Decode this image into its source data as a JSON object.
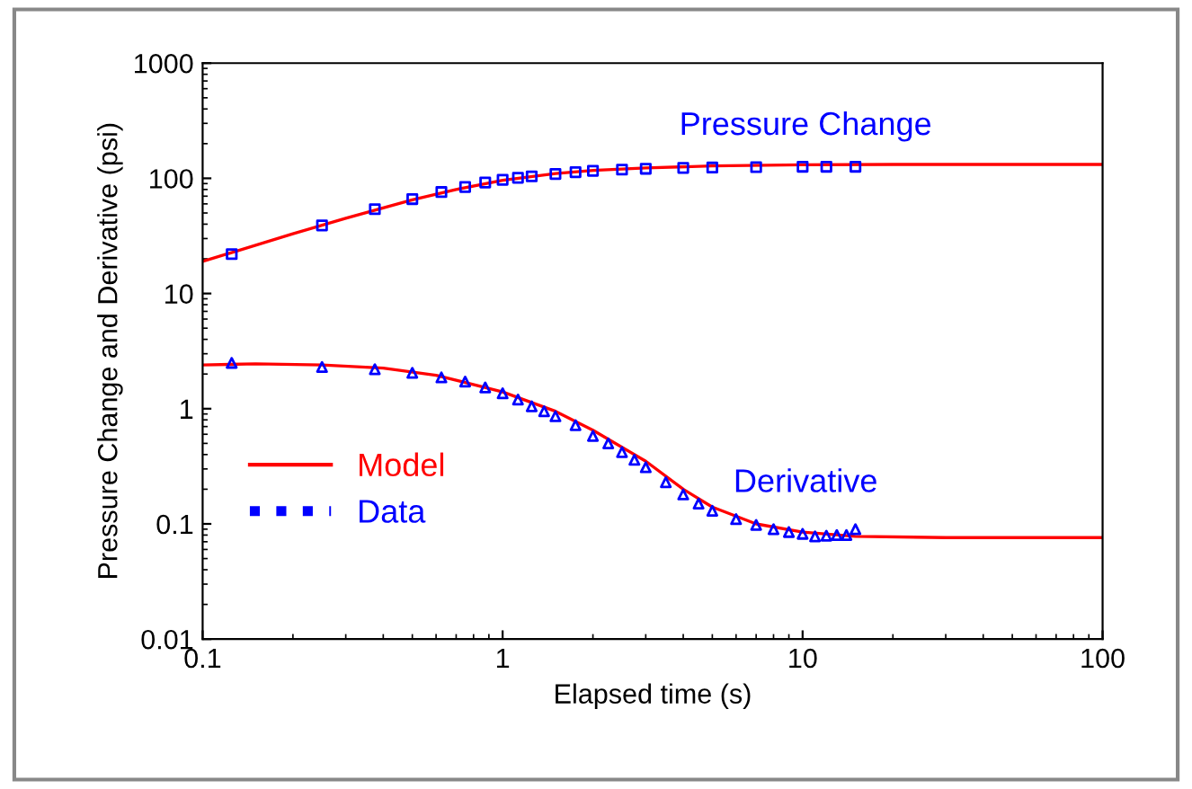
{
  "chart_data": {
    "type": "line",
    "xlabel": "Elapsed time (s)",
    "ylabel": "Pressure Change and Derivative (psi)",
    "log": "xy",
    "xlim": [
      0.1,
      100
    ],
    "ylim": [
      0.01,
      1000
    ],
    "xticks": [
      0.1,
      1,
      10,
      100
    ],
    "yticks": [
      0.01,
      0.1,
      1,
      10,
      100,
      1000
    ],
    "grid": false,
    "legend": "bottom left",
    "series": [
      {
        "name": "Model",
        "color": "#ff0000",
        "line_style": "solid",
        "marker": "none",
        "x": [
          0.1,
          0.2,
          0.3,
          0.5,
          0.7,
          1,
          1.5,
          2,
          3,
          5,
          10,
          20,
          100
        ],
        "values": [
          19,
          33,
          45,
          65,
          80,
          96,
          110,
          117,
          123,
          128,
          131,
          132,
          132
        ]
      },
      {
        "color": "#ff0000",
        "line_style": "solid",
        "marker": "none",
        "x": [
          0.1,
          0.15,
          0.25,
          0.4,
          0.6,
          1,
          1.5,
          2,
          3,
          4,
          5,
          7,
          10,
          15,
          30,
          100
        ],
        "values": [
          2.4,
          2.45,
          2.4,
          2.25,
          1.95,
          1.4,
          0.95,
          0.65,
          0.35,
          0.2,
          0.14,
          0.1,
          0.085,
          0.078,
          0.076,
          0.076
        ]
      },
      {
        "name": "Data",
        "type": "scatter",
        "color": "#0000ff",
        "marker": "square",
        "x": [
          0.125,
          0.25,
          0.375,
          0.5,
          0.625,
          0.75,
          0.875,
          1.0,
          1.125,
          1.25,
          1.5,
          1.75,
          2,
          2.5,
          3,
          4,
          5,
          7,
          10,
          12,
          15
        ],
        "values": [
          22,
          39,
          54,
          66,
          76,
          84,
          92,
          97,
          101,
          104,
          109,
          113,
          116,
          119,
          121,
          123,
          124,
          125,
          126,
          126,
          126
        ]
      },
      {
        "type": "scatter",
        "color": "#0000ff",
        "marker": "triangle",
        "x": [
          0.125,
          0.25,
          0.375,
          0.5,
          0.625,
          0.75,
          0.875,
          1.0,
          1.125,
          1.25,
          1.375,
          1.5,
          1.75,
          2.0,
          2.25,
          2.5,
          2.75,
          3,
          3.5,
          4,
          4.5,
          5,
          6,
          7,
          8,
          9,
          10,
          11,
          12,
          13,
          14,
          15
        ],
        "values": [
          2.5,
          2.3,
          2.2,
          2.05,
          1.87,
          1.72,
          1.53,
          1.36,
          1.2,
          1.05,
          0.95,
          0.86,
          0.72,
          0.58,
          0.5,
          0.42,
          0.36,
          0.31,
          0.23,
          0.18,
          0.15,
          0.13,
          0.11,
          0.098,
          0.09,
          0.085,
          0.082,
          0.078,
          0.079,
          0.08,
          0.08,
          0.09
        ]
      }
    ],
    "annotations": [
      "Pressure Change",
      "Derivative"
    ]
  }
}
